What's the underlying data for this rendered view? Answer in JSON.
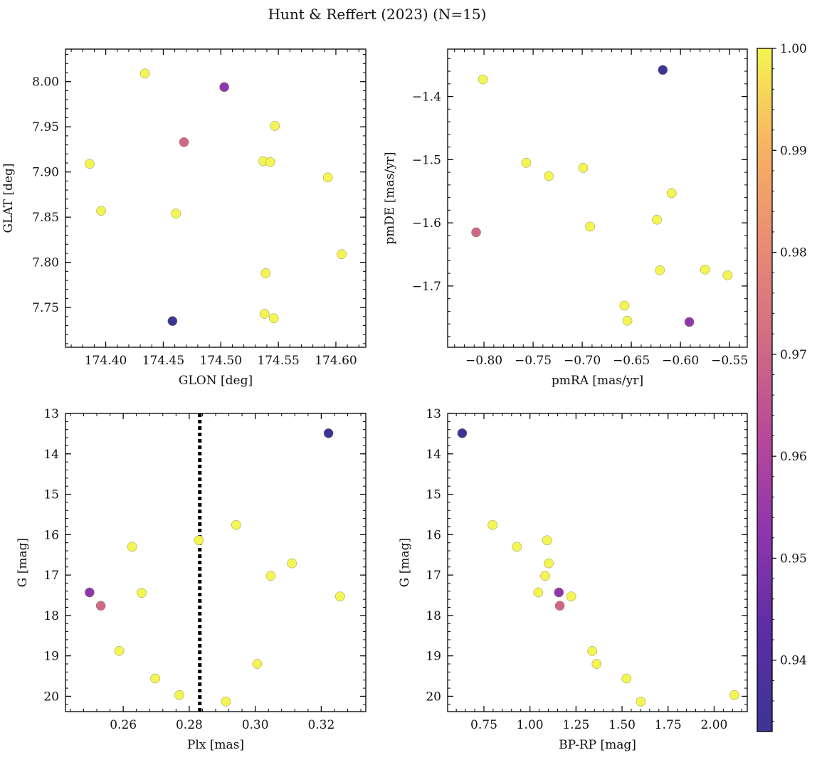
{
  "figure_title": "Hunt & Reffert (2023) (N=15)",
  "colorbar": {
    "range": [
      0.933,
      1.0
    ],
    "ticks": [
      0.94,
      0.95,
      0.96,
      0.97,
      0.98,
      0.99,
      1.0
    ],
    "tick_labels": [
      "0.94",
      "0.95",
      "0.96",
      "0.97",
      "0.98",
      "0.99",
      "1.00"
    ],
    "colormap": "plasma"
  },
  "chart_data": [
    {
      "type": "scatter",
      "id": "glon-glat",
      "title": "",
      "xlabel": "GLON [deg]",
      "ylabel": "GLAT [deg]",
      "xlim": [
        174.365,
        174.626
      ],
      "ylim": [
        7.706,
        8.036
      ],
      "y_inverted": false,
      "xticks": [
        174.4,
        174.45,
        174.5,
        174.55,
        174.6
      ],
      "xtick_labels": [
        "174.40",
        "174.45",
        "174.50",
        "174.55",
        "174.60"
      ],
      "yticks": [
        7.75,
        7.8,
        7.85,
        7.9,
        7.95,
        8.0
      ],
      "ytick_labels": [
        "7.75",
        "7.80",
        "7.85",
        "7.90",
        "7.95",
        "8.00"
      ],
      "minor_x_step": 0.01,
      "minor_y_step": 0.01,
      "points": [
        {
          "x": 174.434,
          "y": 8.009,
          "c": 1.0
        },
        {
          "x": 174.503,
          "y": 7.994,
          "c": 0.953
        },
        {
          "x": 174.547,
          "y": 7.951,
          "c": 1.0
        },
        {
          "x": 174.468,
          "y": 7.933,
          "c": 0.97
        },
        {
          "x": 174.537,
          "y": 7.912,
          "c": 1.0
        },
        {
          "x": 174.543,
          "y": 7.911,
          "c": 1.0
        },
        {
          "x": 174.386,
          "y": 7.909,
          "c": 1.0
        },
        {
          "x": 174.593,
          "y": 7.894,
          "c": 1.0
        },
        {
          "x": 174.396,
          "y": 7.857,
          "c": 1.0
        },
        {
          "x": 174.461,
          "y": 7.854,
          "c": 1.0
        },
        {
          "x": 174.605,
          "y": 7.809,
          "c": 1.0
        },
        {
          "x": 174.539,
          "y": 7.788,
          "c": 1.0
        },
        {
          "x": 174.538,
          "y": 7.743,
          "c": 1.0
        },
        {
          "x": 174.546,
          "y": 7.738,
          "c": 1.0
        },
        {
          "x": 174.458,
          "y": 7.735,
          "c": 0.933
        }
      ]
    },
    {
      "type": "scatter",
      "id": "pmra-pmde",
      "title": "",
      "xlabel": "pmRA [mas/yr]",
      "ylabel": "pmDE [mas/yr]",
      "xlim": [
        -0.837,
        -0.532
      ],
      "ylim": [
        -1.797,
        -1.325
      ],
      "y_inverted": false,
      "xticks": [
        -0.8,
        -0.75,
        -0.7,
        -0.65,
        -0.6,
        -0.55
      ],
      "xtick_labels": [
        "−0.80",
        "−0.75",
        "−0.70",
        "−0.65",
        "−0.60",
        "−0.55"
      ],
      "yticks": [
        -1.7,
        -1.6,
        -1.5,
        -1.4
      ],
      "ytick_labels": [
        "−1.7",
        "−1.6",
        "−1.5",
        "−1.4"
      ],
      "minor_x_step": 0.01,
      "minor_y_step": 0.02,
      "points": [
        {
          "x": -0.618,
          "y": -1.358,
          "c": 0.933
        },
        {
          "x": -0.801,
          "y": -1.373,
          "c": 1.0
        },
        {
          "x": -0.757,
          "y": -1.505,
          "c": 1.0
        },
        {
          "x": -0.699,
          "y": -1.513,
          "c": 1.0
        },
        {
          "x": -0.734,
          "y": -1.526,
          "c": 1.0
        },
        {
          "x": -0.609,
          "y": -1.553,
          "c": 1.0
        },
        {
          "x": -0.624,
          "y": -1.595,
          "c": 1.0
        },
        {
          "x": -0.692,
          "y": -1.606,
          "c": 1.0
        },
        {
          "x": -0.808,
          "y": -1.615,
          "c": 0.97
        },
        {
          "x": -0.621,
          "y": -1.675,
          "c": 1.0
        },
        {
          "x": -0.575,
          "y": -1.674,
          "c": 1.0
        },
        {
          "x": -0.552,
          "y": -1.683,
          "c": 1.0
        },
        {
          "x": -0.657,
          "y": -1.731,
          "c": 1.0
        },
        {
          "x": -0.654,
          "y": -1.755,
          "c": 1.0
        },
        {
          "x": -0.591,
          "y": -1.757,
          "c": 0.953
        }
      ]
    },
    {
      "type": "scatter",
      "id": "plx-g",
      "title": "",
      "xlabel": "Plx [mas]",
      "ylabel": "G [mag]",
      "xlim": [
        0.2425,
        0.3335
      ],
      "ylim": [
        20.38,
        13.0
      ],
      "y_inverted": true,
      "xticks": [
        0.26,
        0.28,
        0.3,
        0.32
      ],
      "xtick_labels": [
        "0.26",
        "0.28",
        "0.30",
        "0.32"
      ],
      "yticks": [
        13,
        14,
        15,
        16,
        17,
        18,
        19,
        20
      ],
      "ytick_labels": [
        "13",
        "14",
        "15",
        "16",
        "17",
        "18",
        "19",
        "20"
      ],
      "minor_x_step": 0.004,
      "minor_y_step": 0.2,
      "vline": {
        "x": 0.2832,
        "style": "dotted"
      },
      "points": [
        {
          "x": 0.3222,
          "y": 13.49,
          "c": 0.933
        },
        {
          "x": 0.2942,
          "y": 15.76,
          "c": 1.0
        },
        {
          "x": 0.2829,
          "y": 16.14,
          "c": 1.0
        },
        {
          "x": 0.2627,
          "y": 16.3,
          "c": 1.0
        },
        {
          "x": 0.3111,
          "y": 16.71,
          "c": 1.0
        },
        {
          "x": 0.3047,
          "y": 17.02,
          "c": 1.0
        },
        {
          "x": 0.2498,
          "y": 17.43,
          "c": 0.953
        },
        {
          "x": 0.2656,
          "y": 17.44,
          "c": 1.0
        },
        {
          "x": 0.3257,
          "y": 17.53,
          "c": 1.0
        },
        {
          "x": 0.2532,
          "y": 17.76,
          "c": 0.97
        },
        {
          "x": 0.2588,
          "y": 18.88,
          "c": 1.0
        },
        {
          "x": 0.3006,
          "y": 19.2,
          "c": 1.0
        },
        {
          "x": 0.2697,
          "y": 19.56,
          "c": 1.0
        },
        {
          "x": 0.277,
          "y": 19.97,
          "c": 1.0
        },
        {
          "x": 0.2911,
          "y": 20.13,
          "c": 1.0
        }
      ]
    },
    {
      "type": "scatter",
      "id": "bprp-g",
      "title": "",
      "xlabel": "BP-RP [mag]",
      "ylabel": "G [mag]",
      "xlim": [
        0.553,
        2.18
      ],
      "ylim": [
        20.38,
        13.0
      ],
      "y_inverted": true,
      "xticks": [
        0.75,
        1.0,
        1.25,
        1.5,
        1.75,
        2.0
      ],
      "xtick_labels": [
        "0.75",
        "1.00",
        "1.25",
        "1.50",
        "1.75",
        "2.00"
      ],
      "yticks": [
        13,
        14,
        15,
        16,
        17,
        18,
        19,
        20
      ],
      "ytick_labels": [
        "13",
        "14",
        "15",
        "16",
        "17",
        "18",
        "19",
        "20"
      ],
      "minor_x_step": 0.05,
      "minor_y_step": 0.2,
      "points": [
        {
          "x": 0.632,
          "y": 13.49,
          "c": 0.933
        },
        {
          "x": 0.797,
          "y": 15.76,
          "c": 1.0
        },
        {
          "x": 1.093,
          "y": 16.14,
          "c": 1.0
        },
        {
          "x": 0.929,
          "y": 16.3,
          "c": 1.0
        },
        {
          "x": 1.102,
          "y": 16.71,
          "c": 1.0
        },
        {
          "x": 1.082,
          "y": 17.02,
          "c": 1.0
        },
        {
          "x": 1.045,
          "y": 17.43,
          "c": 1.0
        },
        {
          "x": 1.157,
          "y": 17.43,
          "c": 0.953
        },
        {
          "x": 1.224,
          "y": 17.53,
          "c": 1.0
        },
        {
          "x": 1.162,
          "y": 17.76,
          "c": 0.97
        },
        {
          "x": 1.338,
          "y": 18.88,
          "c": 1.0
        },
        {
          "x": 1.362,
          "y": 19.2,
          "c": 1.0
        },
        {
          "x": 1.524,
          "y": 19.56,
          "c": 1.0
        },
        {
          "x": 2.11,
          "y": 19.97,
          "c": 1.0
        },
        {
          "x": 1.602,
          "y": 20.13,
          "c": 1.0
        }
      ]
    }
  ]
}
